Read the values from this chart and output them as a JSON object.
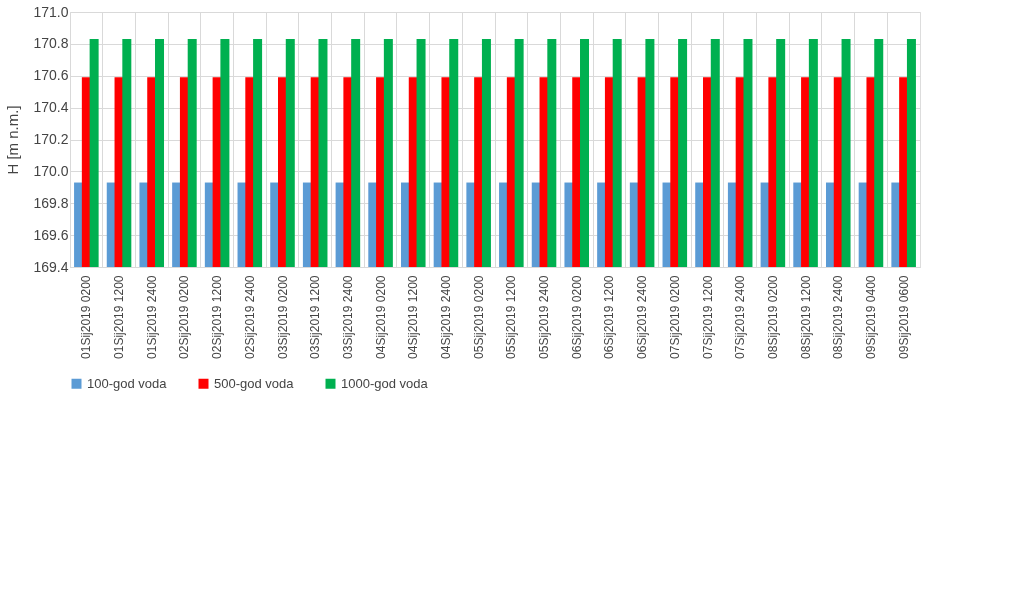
{
  "chart_data": {
    "type": "bar",
    "ylabel": "H [m n.m.]",
    "categories": [
      "01Sij2019 0200",
      "01Sij2019 1200",
      "01Sij2019 2400",
      "02Sij2019 0200",
      "02Sij2019 1200",
      "02Sij2019 2400",
      "03Sij2019 0200",
      "03Sij2019 1200",
      "03Sij2019 2400",
      "04Sij2019 0200",
      "04Sij2019 1200",
      "04Sij2019 2400",
      "05Sij2019 0200",
      "05Sij2019 1200",
      "05Sij2019 2400",
      "06Sij2019 0200",
      "06Sij2019 1200",
      "06Sij2019 2400",
      "07Sij2019 0200",
      "07Sij2019 1200",
      "07Sij2019 2400",
      "08Sij2019 0200",
      "08Sij2019 1200",
      "08Sij2019 2400",
      "09Sij2019 0400",
      "09Sij2019 0600"
    ],
    "series": [
      {
        "name": "100-god voda",
        "color": "#5b9bd5",
        "values": [
          169.93,
          169.93,
          169.93,
          169.93,
          169.93,
          169.93,
          169.93,
          169.93,
          169.93,
          169.93,
          169.93,
          169.93,
          169.93,
          169.93,
          169.93,
          169.93,
          169.93,
          169.93,
          169.93,
          169.93,
          169.93,
          169.93,
          169.93,
          169.93,
          169.93,
          169.93
        ]
      },
      {
        "name": "500-god voda",
        "color": "#ff0000",
        "values": [
          170.59,
          170.59,
          170.59,
          170.59,
          170.59,
          170.59,
          170.59,
          170.59,
          170.59,
          170.59,
          170.59,
          170.59,
          170.59,
          170.59,
          170.59,
          170.59,
          170.59,
          170.59,
          170.59,
          170.59,
          170.59,
          170.59,
          170.59,
          170.59,
          170.59,
          170.59
        ]
      },
      {
        "name": "1000-god voda",
        "color": "#00b050",
        "values": [
          170.83,
          170.83,
          170.83,
          170.83,
          170.83,
          170.83,
          170.83,
          170.83,
          170.83,
          170.83,
          170.83,
          170.83,
          170.83,
          170.83,
          170.83,
          170.83,
          170.83,
          170.83,
          170.83,
          170.83,
          170.83,
          170.83,
          170.83,
          170.83,
          170.83,
          170.83
        ]
      }
    ],
    "ylim": [
      169.4,
      171.0
    ],
    "yticks": [
      {
        "value": 169.4,
        "label": "169.4"
      },
      {
        "value": 169.6,
        "label": "169.6"
      },
      {
        "value": 169.8,
        "label": "169.8"
      },
      {
        "value": 170.0,
        "label": "170.0"
      },
      {
        "value": 170.2,
        "label": "170.2"
      },
      {
        "value": 170.4,
        "label": "170.4"
      },
      {
        "value": 170.6,
        "label": "170.6"
      },
      {
        "value": 170.8,
        "label": "170.8"
      },
      {
        "value": 171.0,
        "label": "171.0"
      }
    ],
    "grid": true,
    "legend": "bottom"
  }
}
